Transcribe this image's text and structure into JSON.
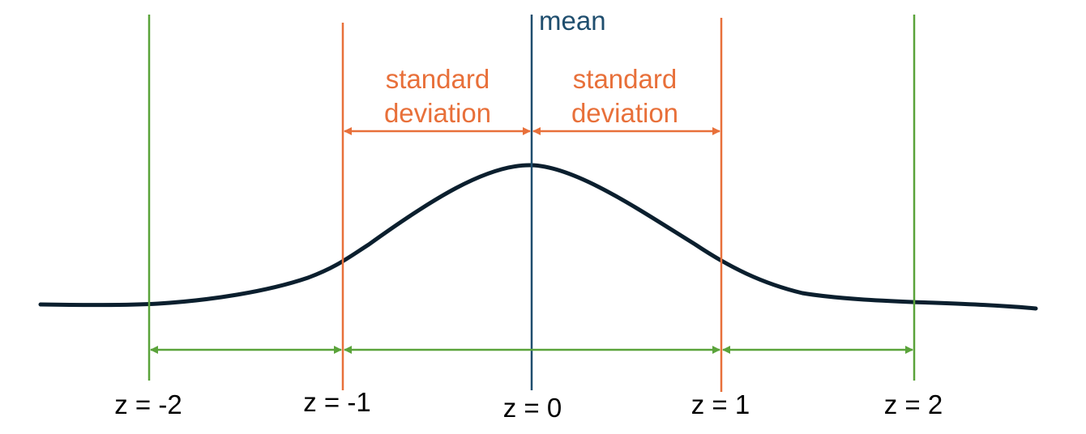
{
  "mean_label": "mean",
  "sd_label_line1": "standard",
  "sd_label_line2": "deviation",
  "z_labels": [
    "z = -2",
    "z = -1",
    "z = 0",
    "z = 1",
    "z = 2"
  ],
  "colors": {
    "curve": "#0b1f2e",
    "mean": "#1f4e6e",
    "sd": "#e8703a",
    "z2": "#5aa33a",
    "background": "#ffffff"
  }
}
